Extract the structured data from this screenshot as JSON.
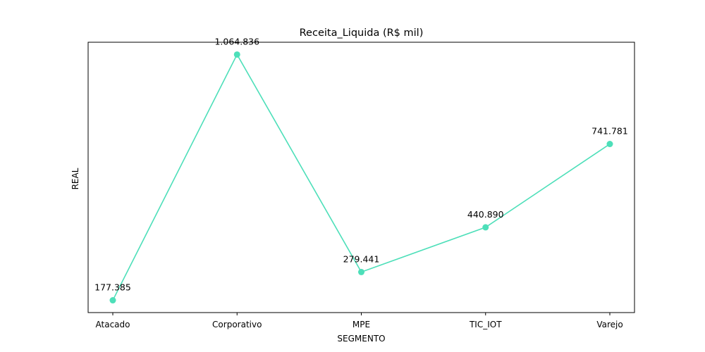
{
  "chart_data": {
    "type": "line",
    "title": "Receita_Liquida (R$ mil)",
    "xlabel": "SEGMENTO",
    "ylabel": "REAL",
    "categories": [
      "Atacado",
      "Corporativo",
      "MPE",
      "TIC_IOT",
      "Varejo"
    ],
    "values": [
      177385,
      1064836,
      279441,
      440890,
      741781
    ],
    "data_labels": [
      "177.385",
      "1.064.836",
      "279.441",
      "440.890",
      "741.781"
    ],
    "y_ticks_visible": false,
    "grid": false,
    "legend": "none",
    "line_color": "#4ddfb9",
    "marker_color": "#4ddfb9"
  }
}
